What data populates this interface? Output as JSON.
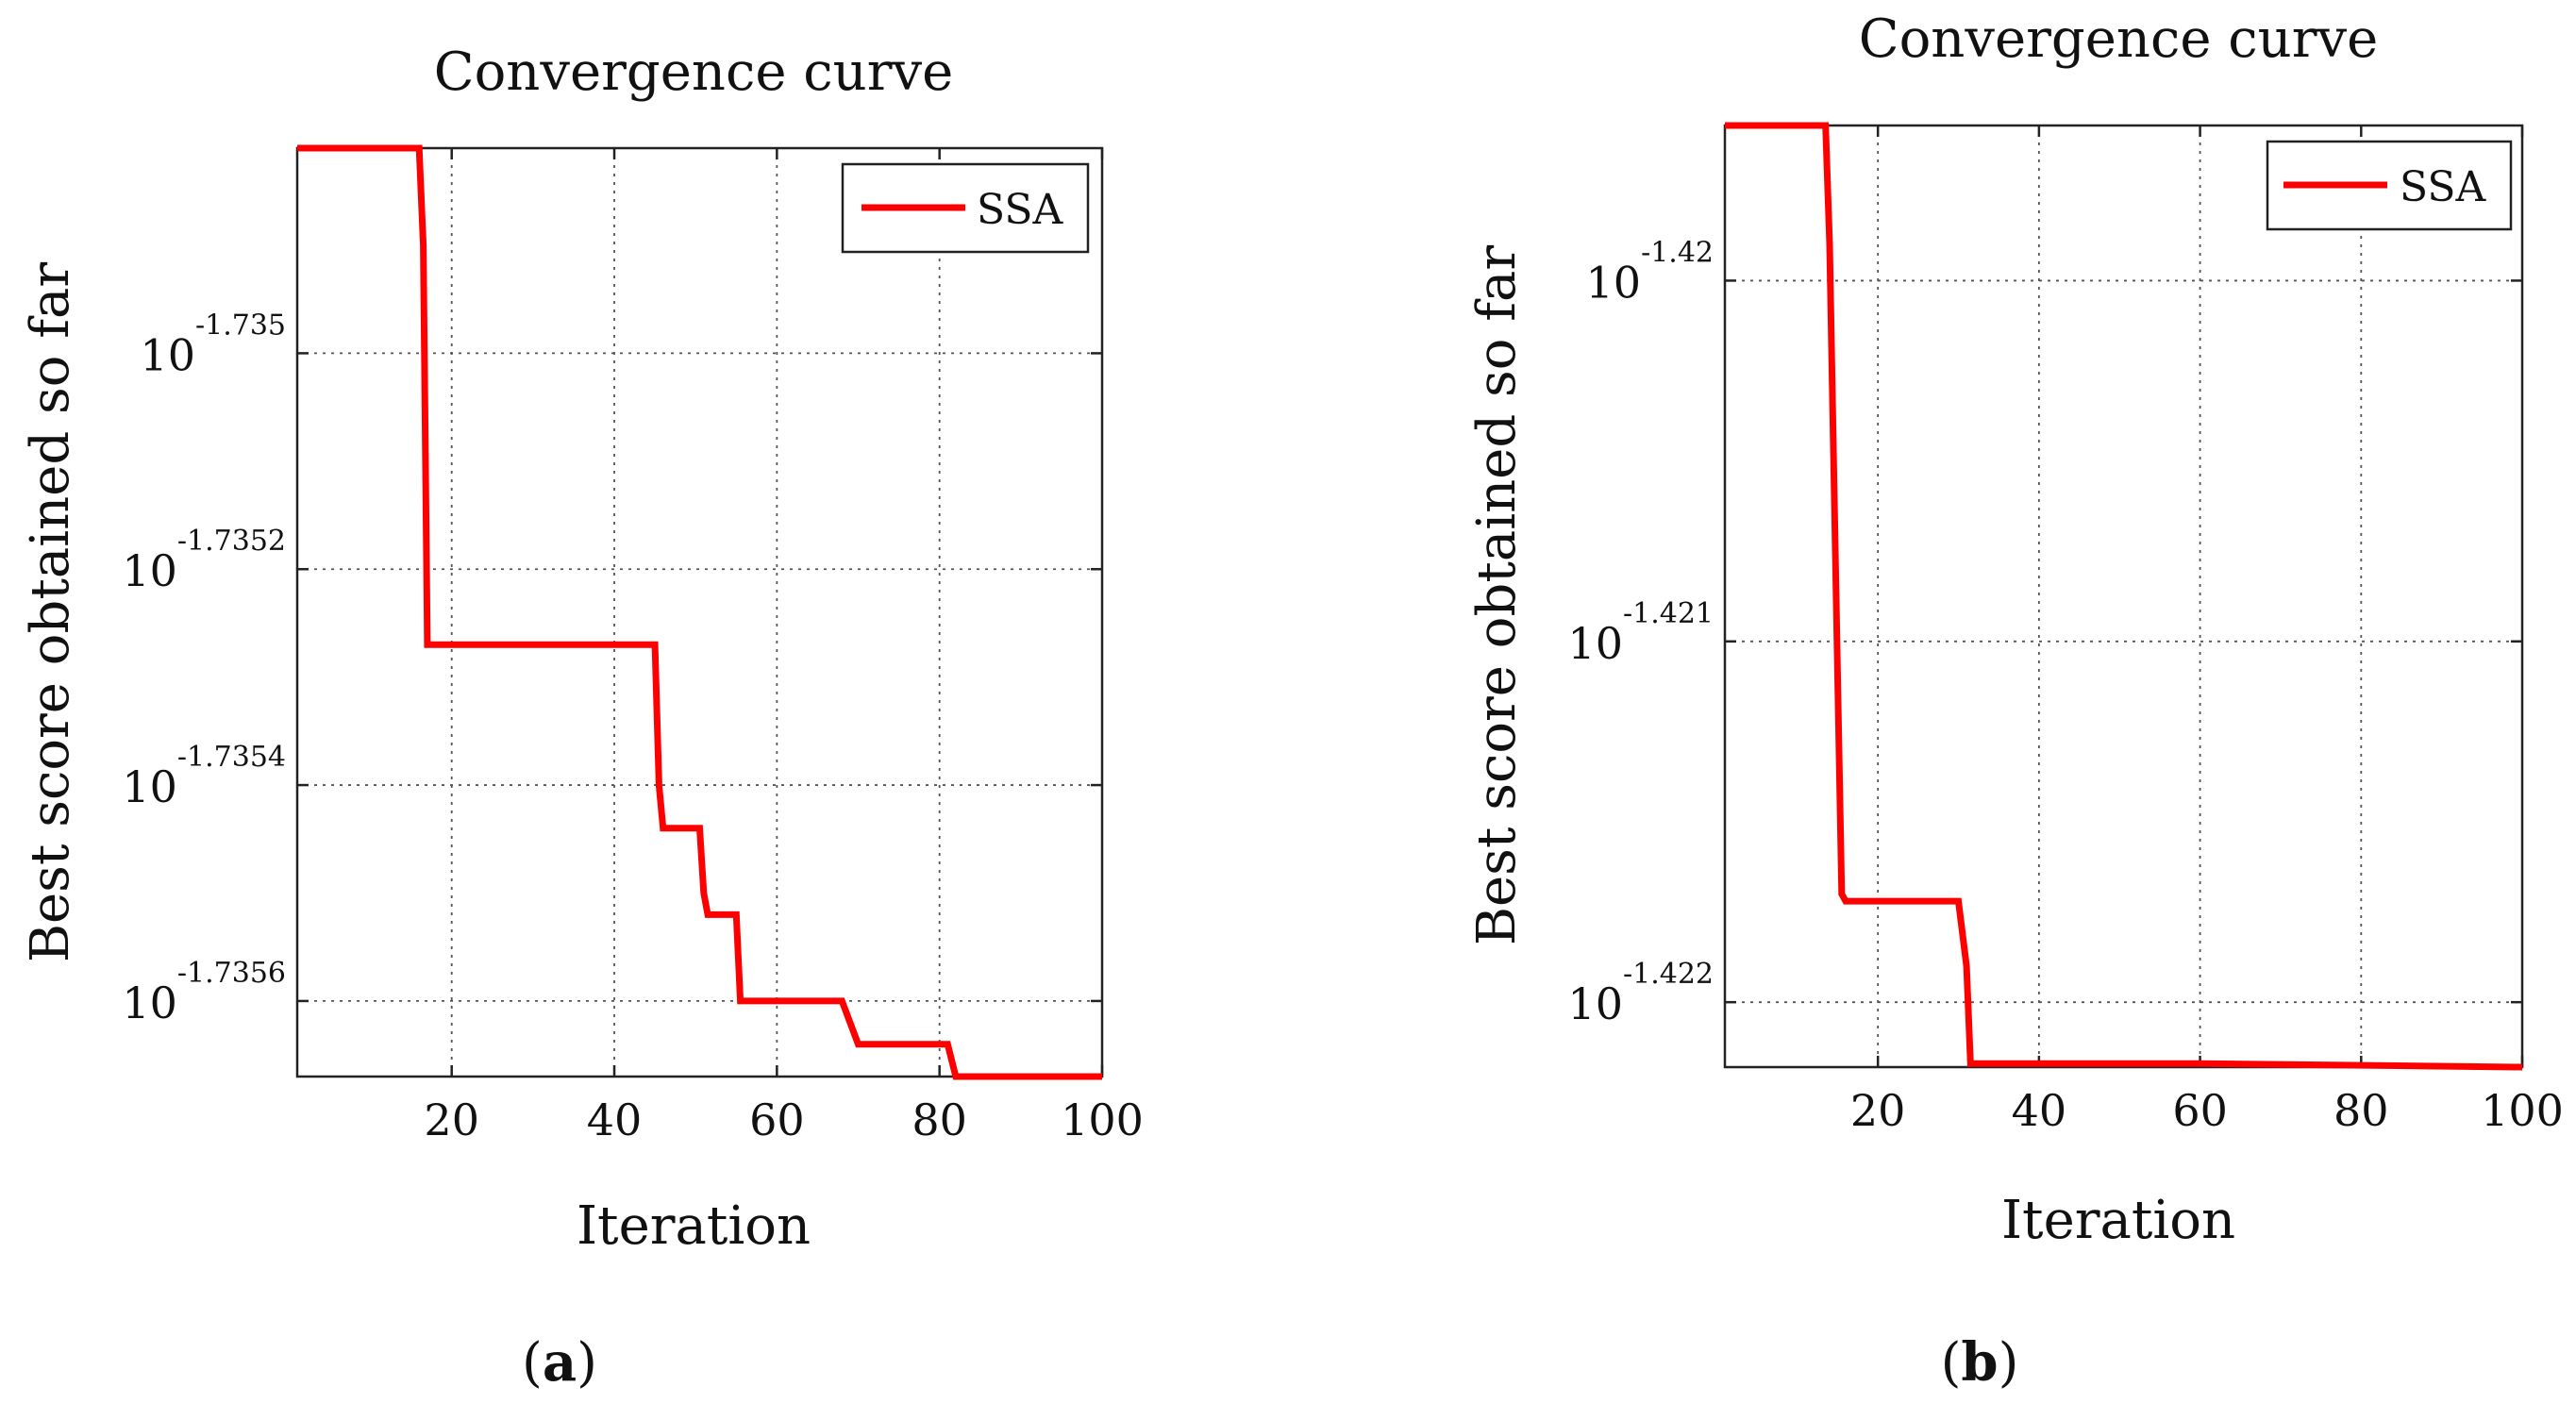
{
  "chart_data": [
    {
      "type": "line",
      "panel_label": {
        "open": "(",
        "letter": "a",
        "close": ")"
      },
      "title": "Convergence curve",
      "xlabel": "Iteration",
      "ylabel": "Best score obtained so far",
      "yscale": "log10",
      "xlim": [
        1,
        100
      ],
      "ylim_exponent": [
        -1.73567,
        -1.73481
      ],
      "xticks": [
        20,
        40,
        60,
        80,
        100
      ],
      "yticks": [
        {
          "base": "10",
          "exponent": "-1.735",
          "value": -1.735
        },
        {
          "base": "10",
          "exponent": "-1.7352",
          "value": -1.7352
        },
        {
          "base": "10",
          "exponent": "-1.7354",
          "value": -1.7354
        },
        {
          "base": "10",
          "exponent": "-1.7356",
          "value": -1.7356
        }
      ],
      "grid": true,
      "legend_position": "top-right",
      "series": [
        {
          "name": "SSA",
          "color": "#ff0000",
          "x": [
            1,
            16,
            16.5,
            17,
            45,
            45.5,
            46,
            50.5,
            51,
            51.5,
            55,
            55.5,
            56,
            68,
            70,
            81,
            82,
            100
          ],
          "y": [
            -1.73481,
            -1.73481,
            -1.7349,
            -1.73527,
            -1.73527,
            -1.7354,
            -1.73544,
            -1.73544,
            -1.7355,
            -1.73552,
            -1.73552,
            -1.7356,
            -1.7356,
            -1.7356,
            -1.73564,
            -1.73564,
            -1.73567,
            -1.73567
          ]
        }
      ]
    },
    {
      "type": "line",
      "panel_label": {
        "open": "(",
        "letter": "b",
        "close": ")"
      },
      "title": "Convergence curve",
      "xlabel": "Iteration",
      "ylabel": "Best score obtained so far",
      "yscale": "log10",
      "xlim": [
        1,
        100
      ],
      "ylim_exponent": [
        -1.42218,
        -1.41957
      ],
      "xticks": [
        20,
        40,
        60,
        80,
        100
      ],
      "yticks": [
        {
          "base": "10",
          "exponent": "-1.42",
          "value": -1.42
        },
        {
          "base": "10",
          "exponent": "-1.421",
          "value": -1.421
        },
        {
          "base": "10",
          "exponent": "-1.422",
          "value": -1.422
        }
      ],
      "grid": true,
      "legend_position": "top-right",
      "series": [
        {
          "name": "SSA",
          "color": "#ff0000",
          "x": [
            1,
            13.5,
            14,
            15,
            15.5,
            16,
            30,
            31,
            31.5,
            32,
            60,
            100
          ],
          "y": [
            -1.41957,
            -1.41957,
            -1.4199,
            -1.4211,
            -1.4217,
            -1.42172,
            -1.42172,
            -1.4219,
            -1.42217,
            -1.42217,
            -1.42217,
            -1.42218
          ]
        }
      ]
    }
  ]
}
